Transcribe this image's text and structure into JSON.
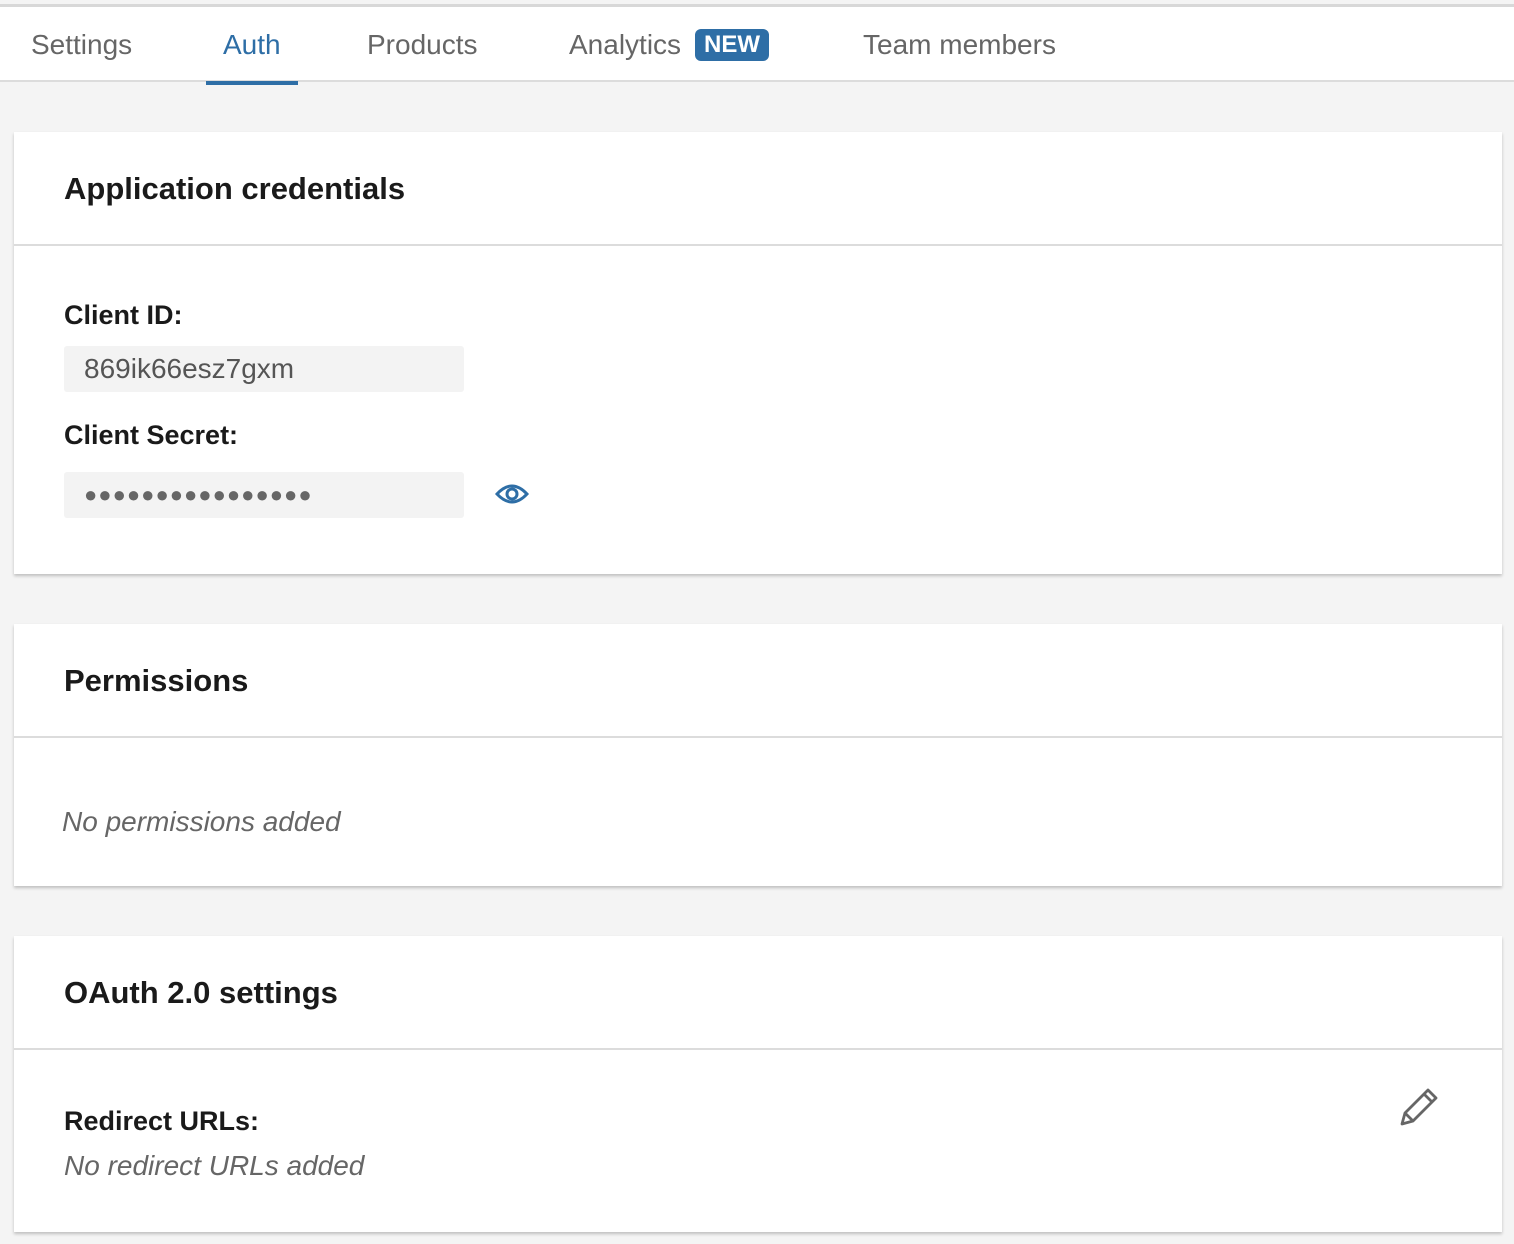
{
  "tabs": [
    {
      "label": "Settings"
    },
    {
      "label": "Auth",
      "active": true
    },
    {
      "label": "Products"
    },
    {
      "label": "Analytics",
      "badge": "NEW"
    },
    {
      "label": "Team members"
    }
  ],
  "credentials": {
    "title": "Application credentials",
    "client_id_label": "Client ID:",
    "client_id_value": "869ik66esz7gxm",
    "client_secret_label": "Client Secret:",
    "client_secret_value": "●●●●●●●●●●●●●●●●",
    "reveal_icon": "eye-icon"
  },
  "permissions": {
    "title": "Permissions",
    "empty_text": "No permissions added"
  },
  "oauth": {
    "title": "OAuth 2.0 settings",
    "redirect_label": "Redirect URLs:",
    "redirect_empty": "No redirect URLs added",
    "edit_icon": "pencil-icon"
  },
  "colors": {
    "accent": "#2e6ea6"
  }
}
